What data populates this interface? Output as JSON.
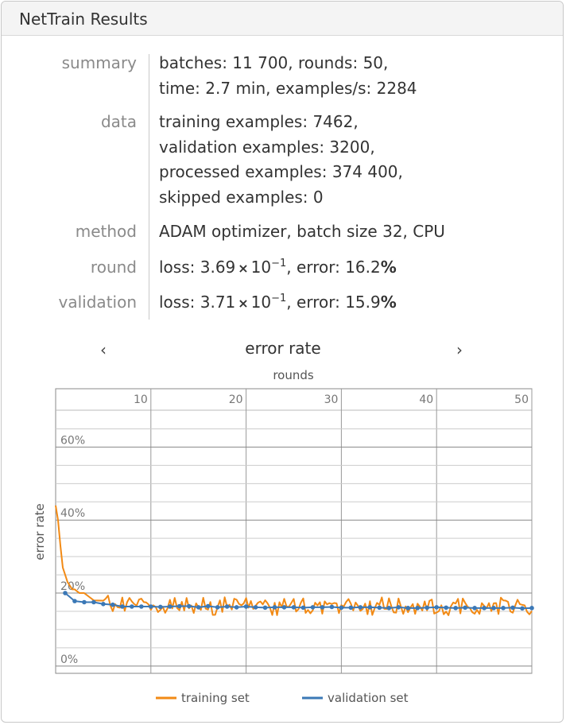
{
  "window": {
    "title": "NetTrain Results"
  },
  "summary": {
    "rows": [
      {
        "label": "summary",
        "lines": [
          "batches: 11 700, rounds: 50,",
          "time: 2.7 min, examples/s: 2284"
        ]
      },
      {
        "label": "data",
        "lines": [
          "training examples: 7462,",
          "validation examples: 3200,",
          "processed examples: 374 400,",
          "skipped examples: 0"
        ]
      },
      {
        "label": "method",
        "lines": [
          "ADAM optimizer, batch size 32, CPU"
        ]
      }
    ],
    "round": {
      "label": "round",
      "loss_mantissa": "3.69",
      "loss_base": "10",
      "loss_exp": "−1",
      "error": "16.2"
    },
    "validation": {
      "label": "validation",
      "loss_mantissa": "3.71",
      "loss_base": "10",
      "loss_exp": "−1",
      "error": "15.9"
    },
    "text": {
      "loss": "loss: ",
      "times": "×",
      "error_prefix": ", error: ",
      "percent": "%"
    }
  },
  "chart_nav": {
    "prev": "‹",
    "next": "›",
    "title": "error rate",
    "prev_icon": "chevron-left-icon",
    "next_icon": "chevron-right-icon"
  },
  "chart_data": {
    "type": "line",
    "title": "error rate",
    "xlabel": "rounds",
    "ylabel": "error rate",
    "x_ticks": [
      "10",
      "20",
      "30",
      "40",
      "50"
    ],
    "y_ticks": [
      "0%",
      "20%",
      "40%",
      "60%"
    ],
    "x_range": [
      0,
      50
    ],
    "y_range": [
      -0.02,
      0.76
    ],
    "grid": true,
    "legend_position": "bottom",
    "series": [
      {
        "name": "training set",
        "color": "#f28a15",
        "x": [
          0,
          0.25,
          0.5,
          0.75,
          1,
          1.25,
          1.5,
          1.75,
          2,
          2.5,
          3,
          3.5,
          4,
          5,
          6,
          7,
          8,
          9,
          10,
          11,
          12,
          13,
          14,
          15,
          16,
          17,
          18,
          19,
          20,
          21,
          22,
          23,
          24,
          25,
          26,
          27,
          28,
          29,
          30,
          31,
          32,
          33,
          34,
          35,
          36,
          37,
          38,
          39,
          40,
          41,
          42,
          43,
          44,
          45,
          46,
          47,
          48,
          49,
          50
        ],
        "y": [
          0.44,
          0.4,
          0.33,
          0.27,
          0.25,
          0.23,
          0.22,
          0.21,
          0.21,
          0.2,
          0.2,
          0.19,
          0.18,
          0.18,
          0.17,
          0.17,
          0.165,
          0.17,
          0.165,
          0.17,
          0.165,
          0.165,
          0.17,
          0.165,
          0.165,
          0.16,
          0.17,
          0.165,
          0.165,
          0.17,
          0.165,
          0.16,
          0.165,
          0.17,
          0.165,
          0.165,
          0.165,
          0.17,
          0.16,
          0.165,
          0.165,
          0.16,
          0.165,
          0.17,
          0.165,
          0.165,
          0.16,
          0.165,
          0.165,
          0.16,
          0.165,
          0.165,
          0.165,
          0.16,
          0.165,
          0.165,
          0.16,
          0.165,
          0.162
        ]
      },
      {
        "name": "validation set",
        "color": "#3b78b6",
        "x": [
          1,
          2,
          3,
          4,
          5,
          6,
          7,
          8,
          9,
          10,
          11,
          12,
          13,
          14,
          15,
          16,
          17,
          18,
          19,
          20,
          21,
          22,
          23,
          24,
          25,
          26,
          27,
          28,
          29,
          30,
          31,
          32,
          33,
          34,
          35,
          36,
          37,
          38,
          39,
          40,
          41,
          42,
          43,
          44,
          45,
          46,
          47,
          48,
          49,
          50
        ],
        "y": [
          0.2,
          0.178,
          0.175,
          0.175,
          0.17,
          0.168,
          0.163,
          0.163,
          0.163,
          0.163,
          0.162,
          0.163,
          0.164,
          0.164,
          0.161,
          0.164,
          0.161,
          0.163,
          0.161,
          0.163,
          0.161,
          0.16,
          0.161,
          0.161,
          0.161,
          0.16,
          0.161,
          0.161,
          0.162,
          0.16,
          0.16,
          0.161,
          0.161,
          0.16,
          0.159,
          0.161,
          0.159,
          0.159,
          0.16,
          0.161,
          0.16,
          0.159,
          0.16,
          0.159,
          0.159,
          0.159,
          0.159,
          0.16,
          0.158,
          0.159
        ]
      }
    ]
  }
}
